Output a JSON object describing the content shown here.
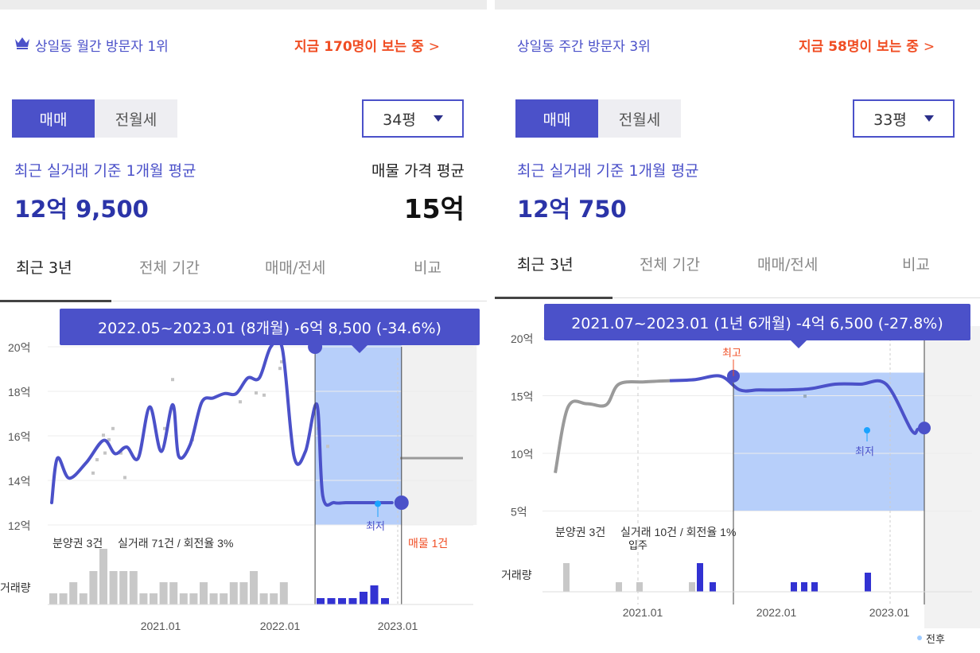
{
  "panels": [
    {
      "visitor_rank": "상일동 월간 방문자 1위",
      "viewing_now": "지금 170명이 보는 중",
      "viewing_arrow": ">",
      "toggle": {
        "sale": "매매",
        "rent": "전월세"
      },
      "area_select": "34평",
      "recent_avg_label": "최근 실거래 기준 1개월 평균",
      "recent_avg_price": "12억 9,500",
      "listing_avg_label": "매물 가격 평균",
      "listing_avg_price": "15억",
      "tabs": [
        "최근 3년",
        "전체 기간",
        "매매/전세",
        "비교"
      ],
      "tooltip": "2022.05~2023.01 (8개월)  -6억 8,500 (-34.6%)",
      "chart_labels": {
        "y_ticks": [
          "20억",
          "18억",
          "16억",
          "14억",
          "12억"
        ],
        "x_ticks": [
          "2021.01",
          "2022.01",
          "2023.01"
        ],
        "min_marker": "최저",
        "info_left": "분양권 3건",
        "info_mid": "실거래 71건 / 회전율 3%",
        "info_right": "매물 1건",
        "volume_label": "거래량"
      }
    },
    {
      "visitor_rank": "상일동 주간 방문자 3위",
      "viewing_now": "지금 58명이 보는 중",
      "viewing_arrow": ">",
      "toggle": {
        "sale": "매매",
        "rent": "전월세"
      },
      "area_select": "33평",
      "recent_avg_label": "최근 실거래 기준 1개월 평균",
      "recent_avg_price": "12억 750",
      "tabs": [
        "최근 3년",
        "전체 기간",
        "매매/전세",
        "비교"
      ],
      "tooltip": "2021.07~2023.01 (1년 6개월)  -4억 6,500 (-27.8%)",
      "chart_labels": {
        "y_ticks": [
          "20억",
          "15억",
          "10억",
          "5억"
        ],
        "x_ticks": [
          "2021.01",
          "2022.01",
          "2023.01"
        ],
        "max_marker": "최고",
        "min_marker": "최저",
        "move_in": "입주",
        "info_left": "분양권 3건",
        "info_mid": "실거래 10건 / 회전율 1%",
        "volume_label": "거래량",
        "legend_partial": "전후"
      }
    }
  ],
  "colors": {
    "accent": "#4b51c9",
    "alert": "#f04d23",
    "fill": "#b7cffa",
    "gray": "#999999"
  },
  "icons": {
    "rank": "crown-icon",
    "dropdown": "caret-down-icon"
  },
  "chart_data": [
    {
      "type": "line",
      "ylabel": "",
      "ylim": [
        11.5,
        20.5
      ],
      "x": [
        2020.05,
        2020.1,
        2020.2,
        2020.35,
        2020.5,
        2020.6,
        2020.7,
        2020.8,
        2020.9,
        2021.0,
        2021.1,
        2021.15,
        2021.25,
        2021.35,
        2021.45,
        2021.55,
        2021.65,
        2021.75,
        2021.85,
        2021.95,
        2022.05,
        2022.15,
        2022.25,
        2022.35,
        2022.4,
        2022.5,
        2022.6,
        2022.7,
        2022.8,
        2022.9,
        2023.0
      ],
      "y": [
        13.0,
        15.0,
        14.1,
        14.8,
        15.8,
        15.2,
        15.5,
        15.0,
        17.3,
        15.3,
        17.4,
        15.1,
        15.6,
        17.5,
        17.7,
        17.9,
        17.9,
        18.6,
        18.6,
        20.0,
        19.9,
        15.1,
        15.3,
        17.4,
        13.3,
        13.0,
        13.0,
        13.0,
        13.0,
        13.0,
        13.0
      ],
      "highlight_range": [
        "2022.05",
        "2023.01"
      ],
      "min_value": 12.95,
      "listing_avg": 15.0,
      "volume_gray": [
        1,
        1,
        2,
        1,
        3,
        5,
        3,
        3,
        3,
        1,
        1,
        2,
        2,
        1,
        1,
        2,
        1,
        1,
        2,
        2,
        3,
        1,
        1,
        2
      ],
      "volume_blue": [
        1,
        1,
        1,
        1,
        2,
        3,
        1
      ]
    },
    {
      "type": "line",
      "ylabel": "",
      "ylim": [
        4.0,
        21.0
      ],
      "x": [
        2020.1,
        2020.2,
        2020.35,
        2020.5,
        2020.6,
        2020.8,
        2021.0,
        2021.2,
        2021.4,
        2021.55,
        2021.7,
        2021.9,
        2022.1,
        2022.3,
        2022.5,
        2022.7,
        2022.9,
        2022.95,
        2023.0
      ],
      "y": [
        8.3,
        14.0,
        14.3,
        14.2,
        16.0,
        16.2,
        16.3,
        16.4,
        16.7,
        15.5,
        15.5,
        15.5,
        15.6,
        16.0,
        16.0,
        16.0,
        12.0,
        12.1,
        12.2
      ],
      "highlight_range": [
        "2021.07",
        "2023.01"
      ],
      "max_value": 16.7,
      "min_value": 12.0,
      "volume_gray": [
        3,
        1,
        1,
        1
      ],
      "volume_blue": [
        3,
        1,
        1,
        1,
        1,
        2
      ]
    }
  ]
}
